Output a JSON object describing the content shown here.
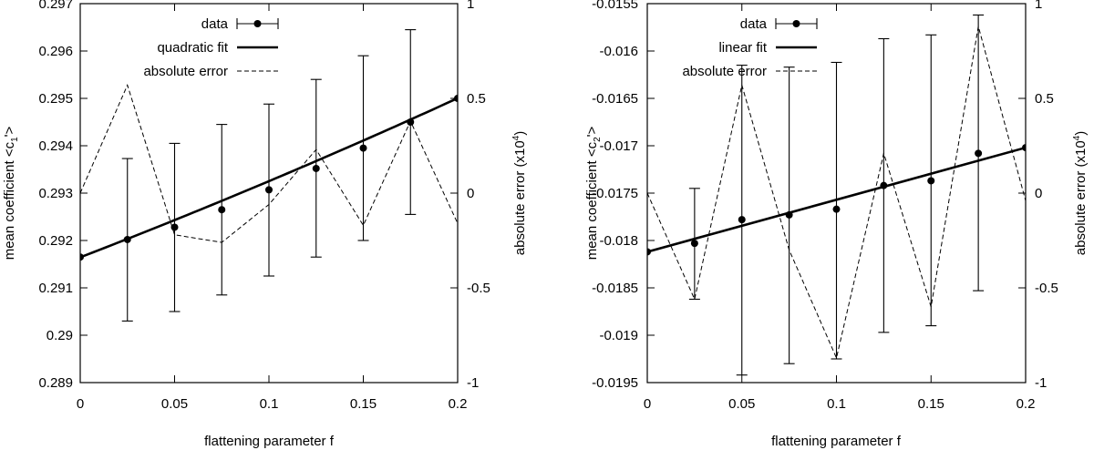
{
  "chart_data": [
    {
      "type": "line",
      "title": "",
      "xlabel": "flattening parameter f",
      "ylabel": "mean coefficient <c",
      "ylabel_sub": "1",
      "ylabel_end": "'>",
      "y2label": "absolute error (x10",
      "y2label_sup": "4",
      "y2label_end": ")",
      "xlim": [
        0,
        0.2
      ],
      "ylim": [
        0.289,
        0.297
      ],
      "y2lim": [
        -1,
        1
      ],
      "xticks": [
        0,
        0.05,
        0.1,
        0.15,
        0.2
      ],
      "xtick_labels": [
        "0",
        "0.05",
        "0.1",
        "0.15",
        "0.2"
      ],
      "yticks": [
        0.289,
        0.29,
        0.291,
        0.292,
        0.293,
        0.294,
        0.295,
        0.296,
        0.297
      ],
      "ytick_labels": [
        "0.289",
        "0.29",
        "0.291",
        "0.292",
        "0.293",
        "0.294",
        "0.295",
        "0.296",
        "0.297"
      ],
      "y2ticks": [
        -1,
        -0.5,
        0,
        0.5,
        1
      ],
      "y2tick_labels": [
        "-1",
        "-0.5",
        "0",
        "0.5",
        "1"
      ],
      "legend": [
        "data",
        "quadratic fit",
        "absolute error"
      ],
      "legend_position": "top-left",
      "data": {
        "x": [
          0,
          0.025,
          0.05,
          0.075,
          0.1,
          0.125,
          0.15,
          0.175,
          0.2
        ],
        "y": [
          0.29165,
          0.29202,
          0.29228,
          0.29265,
          0.29307,
          0.29352,
          0.29395,
          0.2945,
          0.295
        ],
        "err_low": [
          null,
          0.2903,
          0.2905,
          0.29085,
          0.29125,
          0.29165,
          0.292,
          0.29255,
          null
        ],
        "err_high": [
          null,
          0.29373,
          0.29405,
          0.29445,
          0.29488,
          0.2954,
          0.2959,
          0.29645,
          null
        ]
      },
      "fit": {
        "kind": "quadratic",
        "x": [
          0,
          0.025,
          0.05,
          0.075,
          0.1,
          0.125,
          0.15,
          0.175,
          0.2
        ],
        "y": [
          0.29165,
          0.29203,
          0.29243,
          0.29283,
          0.29325,
          0.29368,
          0.29412,
          0.29455,
          0.295
        ]
      },
      "error": {
        "x": [
          0,
          0.025,
          0.05,
          0.075,
          0.1,
          0.125,
          0.15,
          0.175,
          0.2
        ],
        "y": [
          0,
          0.57,
          -0.22,
          -0.26,
          -0.06,
          0.23,
          -0.17,
          0.38,
          -0.16
        ]
      }
    },
    {
      "type": "line",
      "title": "",
      "xlabel": "flattening parameter f",
      "ylabel": "mean coefficient <c",
      "ylabel_sub": "2",
      "ylabel_end": "'>",
      "y2label": "absolute error (x10",
      "y2label_sup": "4",
      "y2label_end": ")",
      "xlim": [
        0,
        0.2
      ],
      "ylim": [
        -0.0195,
        -0.0155
      ],
      "y2lim": [
        -1,
        1
      ],
      "xticks": [
        0,
        0.05,
        0.1,
        0.15,
        0.2
      ],
      "xtick_labels": [
        "0",
        "0.05",
        "0.1",
        "0.15",
        "0.2"
      ],
      "yticks": [
        -0.0195,
        -0.019,
        -0.0185,
        -0.018,
        -0.0175,
        -0.017,
        -0.0165,
        -0.016,
        -0.0155
      ],
      "ytick_labels": [
        "-0.0195",
        "-0.019",
        "-0.0185",
        "-0.018",
        "-0.0175",
        "-0.017",
        "-0.0165",
        "-0.016",
        "-0.0155"
      ],
      "y2ticks": [
        -1,
        -0.5,
        0,
        0.5,
        1
      ],
      "y2tick_labels": [
        "-1",
        "-0.5",
        "0",
        "0.5",
        "1"
      ],
      "legend": [
        "data",
        "linear fit",
        "absolute error"
      ],
      "legend_position": "top-left",
      "data": {
        "x": [
          0,
          0.025,
          0.05,
          0.075,
          0.1,
          0.125,
          0.15,
          0.175,
          0.2
        ],
        "y": [
          -0.01812,
          -0.01803,
          -0.01778,
          -0.01773,
          -0.01767,
          -0.01742,
          -0.01737,
          -0.01708,
          -0.01702
        ],
        "err_low": [
          null,
          -0.01862,
          -0.01942,
          -0.0193,
          -0.01925,
          -0.01897,
          -0.0189,
          -0.01853,
          null
        ],
        "err_high": [
          null,
          -0.01745,
          -0.01615,
          -0.01617,
          -0.01612,
          -0.01587,
          -0.01583,
          -0.01562,
          null
        ]
      },
      "fit": {
        "kind": "linear",
        "x": [
          0,
          0.2
        ],
        "y": [
          -0.01812,
          -0.01702
        ]
      },
      "error": {
        "x": [
          0,
          0.025,
          0.05,
          0.075,
          0.1,
          0.125,
          0.15,
          0.175,
          0.2
        ],
        "y": [
          0,
          -0.56,
          0.57,
          -0.3,
          -0.87,
          0.21,
          -0.6,
          0.88,
          -0.04
        ]
      }
    }
  ]
}
